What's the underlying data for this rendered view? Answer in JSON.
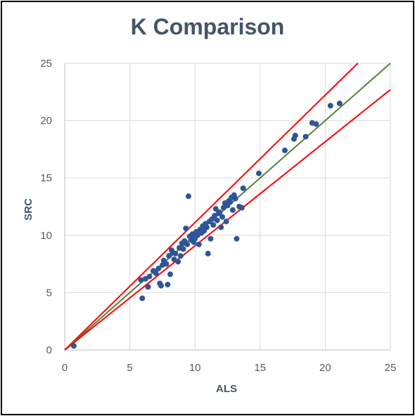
{
  "chart_data": {
    "type": "scatter",
    "title": "K Comparison",
    "xlabel": "ALS",
    "ylabel": "SRC",
    "xlim": [
      0,
      25
    ],
    "ylim": [
      0,
      25
    ],
    "xticks": [
      "0",
      "5",
      "10",
      "15",
      "20",
      "25"
    ],
    "yticks": [
      "0",
      "5",
      "10",
      "15",
      "20",
      "25"
    ],
    "grid": true,
    "colors": {
      "points": "#2f5597",
      "upper_line": "#ff0000",
      "lower_line": "#ff0000",
      "identity_line": "#548235",
      "grid": "#d9d9d9"
    },
    "reference_lines": [
      {
        "role": "upper",
        "x": [
          0,
          22.5
        ],
        "y": [
          0,
          25
        ]
      },
      {
        "role": "identity",
        "x": [
          0,
          25
        ],
        "y": [
          0,
          25
        ]
      },
      {
        "role": "lower",
        "x": [
          0,
          25
        ],
        "y": [
          0,
          22.7
        ]
      }
    ],
    "points": [
      [
        0.7,
        0.35
      ],
      [
        5.85,
        6.1
      ],
      [
        5.95,
        4.5
      ],
      [
        6.2,
        6.2
      ],
      [
        6.4,
        5.5
      ],
      [
        6.5,
        6.4
      ],
      [
        6.8,
        6.9
      ],
      [
        7.0,
        6.7
      ],
      [
        7.2,
        7.1
      ],
      [
        7.3,
        5.8
      ],
      [
        7.4,
        5.6
      ],
      [
        7.5,
        7.4
      ],
      [
        7.6,
        7.8
      ],
      [
        7.8,
        7.5
      ],
      [
        7.9,
        5.7
      ],
      [
        8.0,
        8.2
      ],
      [
        8.1,
        6.6
      ],
      [
        8.2,
        8.7
      ],
      [
        8.3,
        8.5
      ],
      [
        8.4,
        7.9
      ],
      [
        8.5,
        8.4
      ],
      [
        8.7,
        7.7
      ],
      [
        8.8,
        8.9
      ],
      [
        8.9,
        8.2
      ],
      [
        9.0,
        9.3
      ],
      [
        9.1,
        8.8
      ],
      [
        9.2,
        9.5
      ],
      [
        9.3,
        10.6
      ],
      [
        9.4,
        9.2
      ],
      [
        9.5,
        13.4
      ],
      [
        9.6,
        9.9
      ],
      [
        9.7,
        9.6
      ],
      [
        9.8,
        10.1
      ],
      [
        9.9,
        9.4
      ],
      [
        10.0,
        9.7
      ],
      [
        10.1,
        10.3
      ],
      [
        10.2,
        10.0
      ],
      [
        10.3,
        9.2
      ],
      [
        10.4,
        10.5
      ],
      [
        10.5,
        10.2
      ],
      [
        10.6,
        10.8
      ],
      [
        10.7,
        10.4
      ],
      [
        10.8,
        11.0
      ],
      [
        10.9,
        10.7
      ],
      [
        11.0,
        8.4
      ],
      [
        11.1,
        11.2
      ],
      [
        11.2,
        9.7
      ],
      [
        11.3,
        11.4
      ],
      [
        11.4,
        10.9
      ],
      [
        11.5,
        11.7
      ],
      [
        11.6,
        12.3
      ],
      [
        11.7,
        11.3
      ],
      [
        11.8,
        11.9
      ],
      [
        11.9,
        12.0
      ],
      [
        12.0,
        10.7
      ],
      [
        12.1,
        11.6
      ],
      [
        12.2,
        12.4
      ],
      [
        12.3,
        12.8
      ],
      [
        12.4,
        11.2
      ],
      [
        12.5,
        12.6
      ],
      [
        12.6,
        13.0
      ],
      [
        12.7,
        12.9
      ],
      [
        12.8,
        13.3
      ],
      [
        12.9,
        12.2
      ],
      [
        13.0,
        13.5
      ],
      [
        13.1,
        13.2
      ],
      [
        13.2,
        9.7
      ],
      [
        13.4,
        12.5
      ],
      [
        13.6,
        12.4
      ],
      [
        13.7,
        14.1
      ],
      [
        14.9,
        15.4
      ],
      [
        16.9,
        17.4
      ],
      [
        17.6,
        18.4
      ],
      [
        17.7,
        18.7
      ],
      [
        18.5,
        18.6
      ],
      [
        19.0,
        19.8
      ],
      [
        19.3,
        19.7
      ],
      [
        20.4,
        21.3
      ],
      [
        21.1,
        21.5
      ]
    ]
  }
}
